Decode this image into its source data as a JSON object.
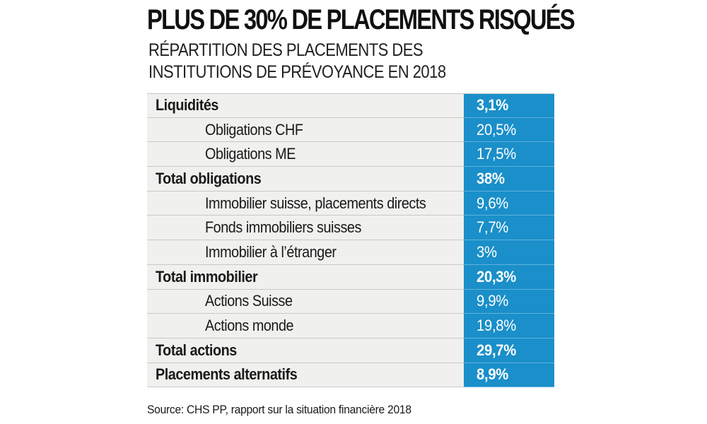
{
  "header": {
    "title": "PLUS DE 30% DE PLACEMENTS RISQUÉS",
    "subtitle": "RÉPARTITION DES PLACEMENTS DES INSTITUTIONS DE PRÉVOYANCE EN 2018"
  },
  "chart_data": {
    "type": "table",
    "title": "PLUS DE 30% DE PLACEMENTS RISQUÉS",
    "subtitle": "RÉPARTITION DES PLACEMENTS DES INSTITUTIONS DE PRÉVOYANCE EN 2018",
    "rows": [
      {
        "label": "Liquidités",
        "value": "3,1%",
        "number": 3.1,
        "bold": true,
        "indent": false
      },
      {
        "label": "Obligations CHF",
        "value": "20,5%",
        "number": 20.5,
        "bold": false,
        "indent": true
      },
      {
        "label": "Obligations ME",
        "value": "17,5%",
        "number": 17.5,
        "bold": false,
        "indent": true
      },
      {
        "label": "Total obligations",
        "value": "38%",
        "number": 38,
        "bold": true,
        "indent": false
      },
      {
        "label": "Immobilier suisse, placements directs",
        "value": "9,6%",
        "number": 9.6,
        "bold": false,
        "indent": true
      },
      {
        "label": "Fonds immobiliers suisses",
        "value": "7,7%",
        "number": 7.7,
        "bold": false,
        "indent": true
      },
      {
        "label": "Immobilier à l’étranger",
        "value": "3%",
        "number": 3,
        "bold": false,
        "indent": true
      },
      {
        "label": "Total immobilier",
        "value": "20,3%",
        "number": 20.3,
        "bold": true,
        "indent": false
      },
      {
        "label": "Actions Suisse",
        "value": "9,9%",
        "number": 9.9,
        "bold": false,
        "indent": true
      },
      {
        "label": "Actions monde",
        "value": "19,8%",
        "number": 19.8,
        "bold": false,
        "indent": true
      },
      {
        "label": "Total actions",
        "value": "29,7%",
        "number": 29.7,
        "bold": true,
        "indent": false
      },
      {
        "label": "Placements alternatifs",
        "value": "8,9%",
        "number": 8.9,
        "bold": true,
        "indent": false
      }
    ],
    "colors": {
      "value_column": "#1a8fc9",
      "label_column": "#f0f0ee"
    }
  },
  "footer": {
    "source": "Source: CHS PP, rapport sur la situation financière 2018"
  }
}
